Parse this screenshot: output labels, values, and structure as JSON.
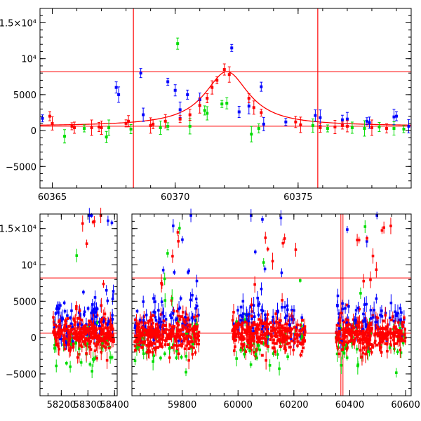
{
  "chart_data": [
    {
      "type": "scatter",
      "panel": "top",
      "xlim": [
        60364.5,
        60379.6
      ],
      "ylim": [
        -8000,
        17000
      ],
      "x_ticks": [
        60365,
        60370,
        60375
      ],
      "x_tick_labels": [
        "60365",
        "60370",
        "60375"
      ],
      "y_ticks": [
        -5000,
        0,
        5000,
        10000,
        15000
      ],
      "y_tick_labels": [
        "−5000",
        "0",
        "5000",
        "10⁴",
        "1.5×10⁴"
      ],
      "grid": false,
      "legend": "none",
      "colors": {
        "blue": "#0000ff",
        "green": "#00dd00",
        "red": "#ff0000",
        "frame": "#000000"
      },
      "reference_lines": {
        "horizontal_y": [
          600,
          8200
        ],
        "vertical_x": [
          60368.3,
          60375.8
        ]
      },
      "model_curve": {
        "kind": "lorentzian",
        "center": 60372.1,
        "base": 600,
        "peak": 8200,
        "half_width": 1.1,
        "color": "#ff0000"
      },
      "series": [
        {
          "color": "#0000ff",
          "points": [
            [
              60364.6,
              1700
            ],
            [
              60367.6,
              6000
            ],
            [
              60367.7,
              5000
            ],
            [
              60368.6,
              8000
            ],
            [
              60368.7,
              2200
            ],
            [
              60369.7,
              6800
            ],
            [
              60370.0,
              5600
            ],
            [
              60370.2,
              2900
            ],
            [
              60370.5,
              5000
            ],
            [
              60371.0,
              4300
            ],
            [
              60372.3,
              11500
            ],
            [
              60372.6,
              2600
            ],
            [
              60373.0,
              3400
            ],
            [
              60373.5,
              6100
            ],
            [
              60373.6,
              900
            ],
            [
              60374.5,
              1200
            ],
            [
              60375.7,
              2100
            ],
            [
              60375.9,
              1800
            ],
            [
              60376.8,
              1500
            ],
            [
              60377.0,
              1600
            ],
            [
              60377.8,
              1300
            ],
            [
              60377.9,
              1100
            ],
            [
              60378.9,
              1900
            ],
            [
              60379.0,
              2000
            ],
            [
              60379.5,
              600
            ]
          ]
        },
        {
          "color": "#00dd00",
          "points": [
            [
              60365.5,
              -800
            ],
            [
              60366.3,
              300
            ],
            [
              60367.2,
              -900
            ],
            [
              60367.3,
              400
            ],
            [
              60368.2,
              200
            ],
            [
              60369.4,
              400
            ],
            [
              60369.7,
              600
            ],
            [
              60370.1,
              12100
            ],
            [
              60370.6,
              600
            ],
            [
              60371.2,
              2800
            ],
            [
              60371.3,
              2400
            ],
            [
              60371.9,
              3700
            ],
            [
              60372.1,
              3800
            ],
            [
              60373.1,
              -500
            ],
            [
              60373.4,
              300
            ],
            [
              60375.6,
              700
            ],
            [
              60376.2,
              300
            ],
            [
              60377.2,
              400
            ],
            [
              60377.7,
              300
            ],
            [
              60378.3,
              500
            ],
            [
              60378.9,
              300
            ],
            [
              60379.3,
              200
            ]
          ]
        },
        {
          "color": "#ff0000",
          "points": [
            [
              60364.9,
              2000
            ],
            [
              60365.0,
              1000
            ],
            [
              60365.8,
              600
            ],
            [
              60365.9,
              400
            ],
            [
              60366.6,
              400
            ],
            [
              60366.9,
              500
            ],
            [
              60367.0,
              400
            ],
            [
              60368.0,
              1000
            ],
            [
              60368.1,
              1300
            ],
            [
              60369.0,
              700
            ],
            [
              60369.1,
              900
            ],
            [
              60369.6,
              1300
            ],
            [
              60370.2,
              1600
            ],
            [
              60370.6,
              2200
            ],
            [
              60371.0,
              3500
            ],
            [
              60371.3,
              4500
            ],
            [
              60371.5,
              6000
            ],
            [
              60371.7,
              7000
            ],
            [
              60372.0,
              8500
            ],
            [
              60372.2,
              7800
            ],
            [
              60373.0,
              4500
            ],
            [
              60373.2,
              3200
            ],
            [
              60373.5,
              2500
            ],
            [
              60374.9,
              1200
            ],
            [
              60375.1,
              800
            ],
            [
              60375.9,
              400
            ],
            [
              60376.5,
              500
            ],
            [
              60376.8,
              700
            ],
            [
              60377.0,
              600
            ],
            [
              60378.0,
              400
            ],
            [
              60378.6,
              300
            ]
          ]
        }
      ]
    },
    {
      "type": "scatter",
      "panel": "bottom",
      "broken_x_axis": true,
      "x_segments": [
        [
          58120,
          58410
        ],
        [
          59620,
          60620
        ]
      ],
      "ylim": [
        -8000,
        17000
      ],
      "x_ticks": [
        58200,
        58300,
        58400,
        59800,
        60000,
        60200,
        60400,
        60600
      ],
      "x_tick_labels": [
        "58200",
        "58300",
        "58400",
        "59800",
        "60000",
        "60200",
        "60400",
        "60600"
      ],
      "y_ticks": [
        -5000,
        0,
        5000,
        10000,
        15000
      ],
      "y_tick_labels": [
        "−5000",
        "0",
        "5000",
        "10⁴",
        "1.5×10⁴"
      ],
      "grid": false,
      "legend": "none",
      "colors": {
        "blue": "#0000ff",
        "green": "#00dd00",
        "red": "#ff0000",
        "frame": "#000000"
      },
      "reference_lines": {
        "horizontal_y": [
          600,
          8200
        ],
        "vertical_x": [
          60368.3,
          60375.8
        ]
      },
      "observing_seasons": [
        {
          "x_start": 58170,
          "x_end": 58400,
          "active_from": 58255
        },
        {
          "x_start": 59630,
          "x_end": 59860,
          "active_from": 59720
        },
        {
          "x_start": 59980,
          "x_end": 60240,
          "active_from": 60040
        },
        {
          "x_start": 60350,
          "x_end": 60600,
          "active_from": 60380
        }
      ],
      "flux_range_typical": [
        -3000,
        7000
      ],
      "flux_range_flares": [
        -8000,
        17000
      ]
    }
  ]
}
